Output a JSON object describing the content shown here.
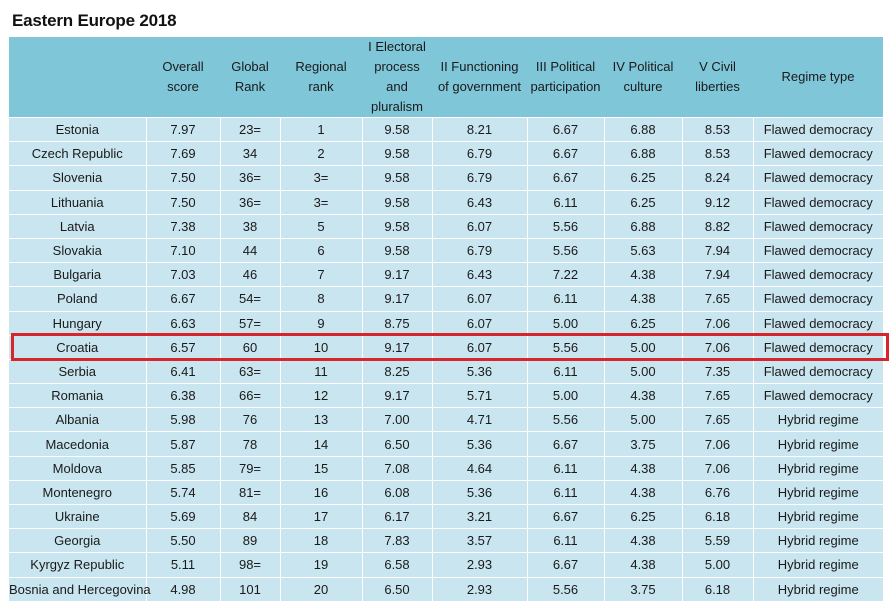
{
  "title": "Eastern Europe 2018",
  "accent": {
    "header_bg": "#7fc6d9",
    "row_bg": "#c9e5ef",
    "highlight": "#d7262b"
  },
  "highlighted_country": "Croatia",
  "chart_data": {
    "type": "table",
    "title": "Eastern Europe 2018",
    "columns": [
      {
        "key": "country",
        "label": ""
      },
      {
        "key": "overall",
        "label": "Overall score"
      },
      {
        "key": "global",
        "label": "Global Rank"
      },
      {
        "key": "regional",
        "label": "Regional rank"
      },
      {
        "key": "electoral",
        "label": "I Electoral process and pluralism"
      },
      {
        "key": "functioning",
        "label": "II Functioning of government"
      },
      {
        "key": "participation",
        "label": "III Political participation"
      },
      {
        "key": "culture",
        "label": "IV Political culture"
      },
      {
        "key": "liberties",
        "label": "V Civil liberties"
      },
      {
        "key": "regime",
        "label": "Regime type"
      }
    ],
    "rows": [
      [
        "Estonia",
        "7.97",
        "23=",
        "1",
        "9.58",
        "8.21",
        "6.67",
        "6.88",
        "8.53",
        "Flawed democracy"
      ],
      [
        "Czech Republic",
        "7.69",
        "34",
        "2",
        "9.58",
        "6.79",
        "6.67",
        "6.88",
        "8.53",
        "Flawed democracy"
      ],
      [
        "Slovenia",
        "7.50",
        "36=",
        "3=",
        "9.58",
        "6.79",
        "6.67",
        "6.25",
        "8.24",
        "Flawed democracy"
      ],
      [
        "Lithuania",
        "7.50",
        "36=",
        "3=",
        "9.58",
        "6.43",
        "6.11",
        "6.25",
        "9.12",
        "Flawed democracy"
      ],
      [
        "Latvia",
        "7.38",
        "38",
        "5",
        "9.58",
        "6.07",
        "5.56",
        "6.88",
        "8.82",
        "Flawed democracy"
      ],
      [
        "Slovakia",
        "7.10",
        "44",
        "6",
        "9.58",
        "6.79",
        "5.56",
        "5.63",
        "7.94",
        "Flawed democracy"
      ],
      [
        "Bulgaria",
        "7.03",
        "46",
        "7",
        "9.17",
        "6.43",
        "7.22",
        "4.38",
        "7.94",
        "Flawed democracy"
      ],
      [
        "Poland",
        "6.67",
        "54=",
        "8",
        "9.17",
        "6.07",
        "6.11",
        "4.38",
        "7.65",
        "Flawed democracy"
      ],
      [
        "Hungary",
        "6.63",
        "57=",
        "9",
        "8.75",
        "6.07",
        "5.00",
        "6.25",
        "7.06",
        "Flawed democracy"
      ],
      [
        "Croatia",
        "6.57",
        "60",
        "10",
        "9.17",
        "6.07",
        "5.56",
        "5.00",
        "7.06",
        "Flawed democracy"
      ],
      [
        "Serbia",
        "6.41",
        "63=",
        "11",
        "8.25",
        "5.36",
        "6.11",
        "5.00",
        "7.35",
        "Flawed democracy"
      ],
      [
        "Romania",
        "6.38",
        "66=",
        "12",
        "9.17",
        "5.71",
        "5.00",
        "4.38",
        "7.65",
        "Flawed democracy"
      ],
      [
        "Albania",
        "5.98",
        "76",
        "13",
        "7.00",
        "4.71",
        "5.56",
        "5.00",
        "7.65",
        "Hybrid regime"
      ],
      [
        "Macedonia",
        "5.87",
        "78",
        "14",
        "6.50",
        "5.36",
        "6.67",
        "3.75",
        "7.06",
        "Hybrid regime"
      ],
      [
        "Moldova",
        "5.85",
        "79=",
        "15",
        "7.08",
        "4.64",
        "6.11",
        "4.38",
        "7.06",
        "Hybrid regime"
      ],
      [
        "Montenegro",
        "5.74",
        "81=",
        "16",
        "6.08",
        "5.36",
        "6.11",
        "4.38",
        "6.76",
        "Hybrid regime"
      ],
      [
        "Ukraine",
        "5.69",
        "84",
        "17",
        "6.17",
        "3.21",
        "6.67",
        "6.25",
        "6.18",
        "Hybrid regime"
      ],
      [
        "Georgia",
        "5.50",
        "89",
        "18",
        "7.83",
        "3.57",
        "6.11",
        "4.38",
        "5.59",
        "Hybrid regime"
      ],
      [
        "Kyrgyz Republic",
        "5.11",
        "98=",
        "19",
        "6.58",
        "2.93",
        "6.67",
        "4.38",
        "5.00",
        "Hybrid regime"
      ],
      [
        "Bosnia and Hercegovina",
        "4.98",
        "101",
        "20",
        "6.50",
        "2.93",
        "5.56",
        "3.75",
        "6.18",
        "Hybrid regime"
      ]
    ]
  }
}
